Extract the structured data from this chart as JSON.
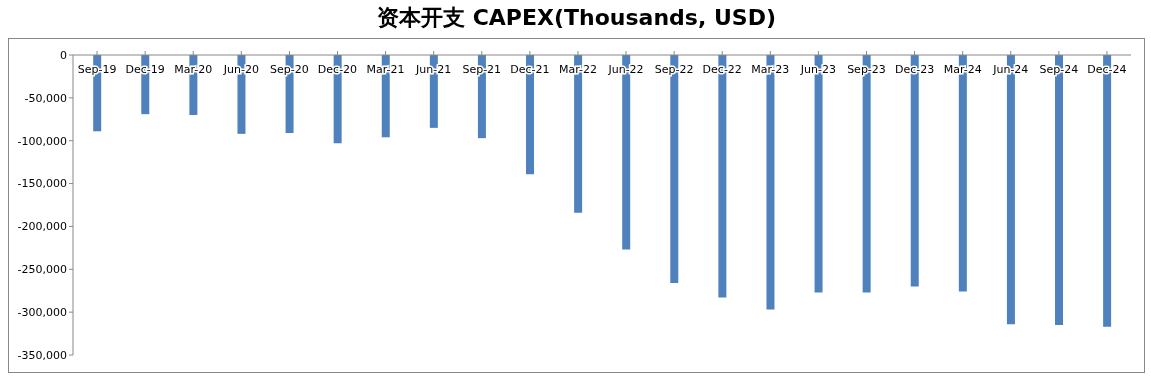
{
  "chart_data": {
    "type": "bar",
    "title": "资本开支 CAPEX(Thousands, USD)",
    "categories": [
      "Sep-19",
      "Dec-19",
      "Mar-20",
      "Jun-20",
      "Sep-20",
      "Dec-20",
      "Mar-21",
      "Jun-21",
      "Sep-21",
      "Dec-21",
      "Mar-22",
      "Jun-22",
      "Sep-22",
      "Dec-22",
      "Mar-23",
      "Jun-23",
      "Sep-23",
      "Dec-23",
      "Mar-24",
      "Jun-24",
      "Sep-24",
      "Dec-24"
    ],
    "values": [
      -89000,
      -69000,
      -70000,
      -92000,
      -91000,
      -103000,
      -96000,
      -85000,
      -97000,
      -139000,
      -184000,
      -227000,
      -266000,
      -283000,
      -297000,
      -277000,
      -277000,
      -270000,
      -276000,
      -314000,
      -315000,
      -317000
    ],
    "color": "#4f81bd",
    "ylim": [
      -350000,
      0
    ],
    "yticks": [
      {
        "value": -350000,
        "label": "-350,000"
      },
      {
        "value": -300000,
        "label": "-300,000"
      },
      {
        "value": -250000,
        "label": "-250,000"
      },
      {
        "value": -200000,
        "label": "-200,000"
      },
      {
        "value": -150000,
        "label": "-150,000"
      },
      {
        "value": -100000,
        "label": "-100,000"
      },
      {
        "value": -50000,
        "label": "-50,000"
      },
      0
    ],
    "grid": false,
    "legend": false
  }
}
